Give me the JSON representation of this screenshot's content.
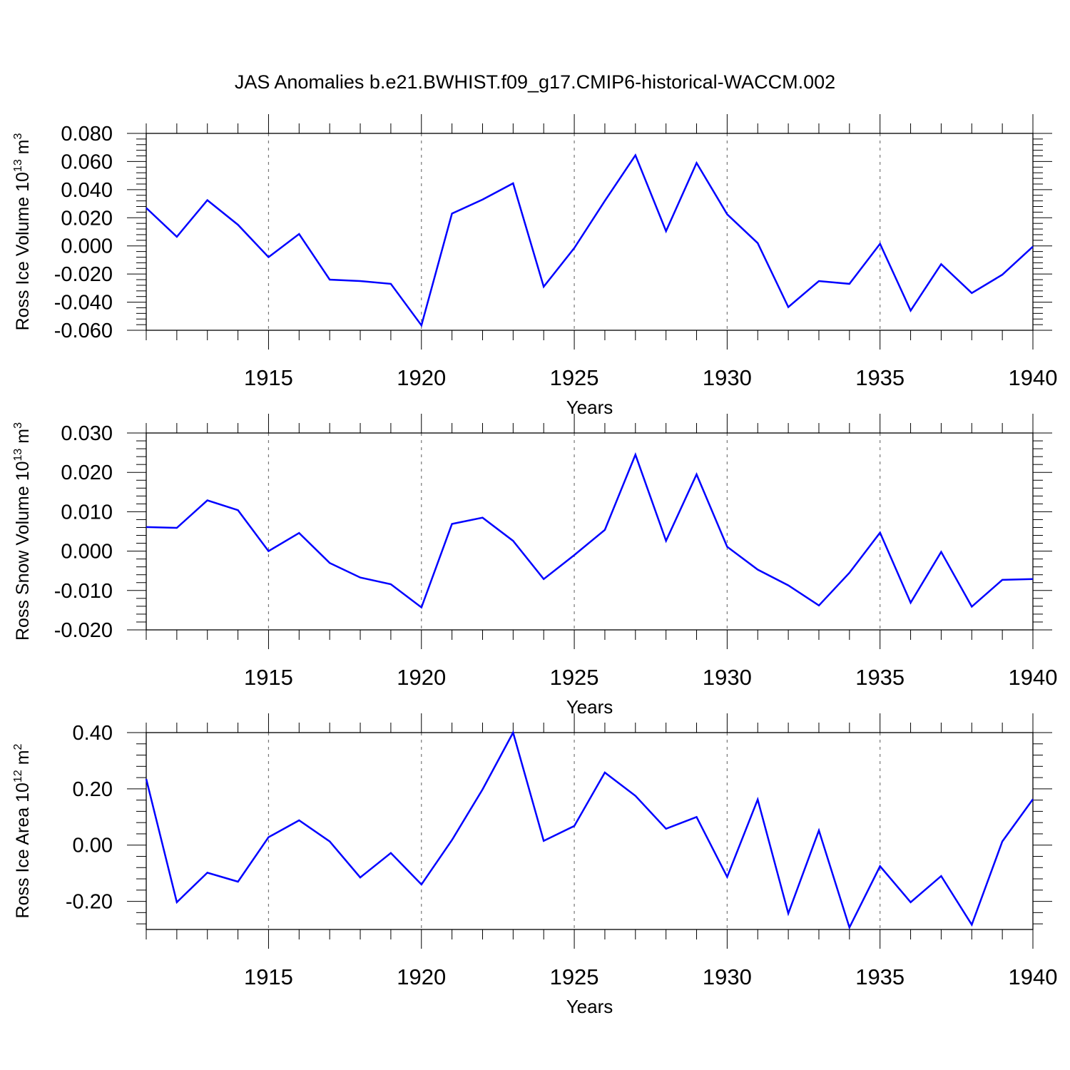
{
  "colors": {
    "line": "#0000ff",
    "axis": "#000000",
    "grid": "#777777",
    "background": "#ffffff"
  },
  "figure": {
    "title": "JAS Anomalies b.e21.BWHIST.f09_g17.CMIP6-historical-WACCM.002"
  },
  "chart_data": [
    {
      "type": "line",
      "ylabel_main": "Ross Ice Volume 10",
      "ylabel_exp": "13",
      "ylabel_unit": " m",
      "ylabel_unit_exp": "3",
      "xlabel": "Years",
      "xlim": [
        1911,
        1940
      ],
      "ylim": [
        -0.06,
        0.08
      ],
      "yticks": [
        -0.06,
        -0.04,
        -0.02,
        0.0,
        0.02,
        0.04,
        0.06,
        0.08
      ],
      "ytick_labels": [
        "-0.060",
        "-0.040",
        "-0.020",
        "0.000",
        "0.020",
        "0.040",
        "0.060",
        "0.080"
      ],
      "xticks": [
        1915,
        1920,
        1925,
        1930,
        1935,
        1940
      ],
      "xtick_labels": [
        "1915",
        "1920",
        "1925",
        "1930",
        "1935",
        "1940"
      ],
      "vertical_gridlines": [
        1915,
        1920,
        1925,
        1930,
        1935
      ],
      "x": [
        1911,
        1912,
        1913,
        1914,
        1915,
        1916,
        1917,
        1918,
        1919,
        1920,
        1921,
        1922,
        1923,
        1924,
        1925,
        1926,
        1927,
        1928,
        1929,
        1930,
        1931,
        1932,
        1933,
        1934,
        1935,
        1936,
        1937,
        1938,
        1939,
        1940
      ],
      "y": [
        0.027,
        0.0065,
        0.0325,
        0.015,
        -0.008,
        0.0085,
        -0.024,
        -0.025,
        -0.027,
        -0.0565,
        0.023,
        0.033,
        0.0445,
        -0.029,
        -0.0015,
        0.032,
        0.0645,
        0.0105,
        0.059,
        0.0225,
        0.002,
        -0.0435,
        -0.025,
        -0.027,
        0.0015,
        -0.046,
        -0.013,
        -0.0335,
        -0.0205,
        -0.0005
      ]
    },
    {
      "type": "line",
      "ylabel_main": "Ross Snow Volume 10",
      "ylabel_exp": "13",
      "ylabel_unit": " m",
      "ylabel_unit_exp": "3",
      "xlabel": "Years",
      "xlim": [
        1911,
        1940
      ],
      "ylim": [
        -0.02,
        0.03
      ],
      "yticks": [
        -0.02,
        -0.01,
        0.0,
        0.01,
        0.02,
        0.03
      ],
      "ytick_labels": [
        "-0.020",
        "-0.010",
        "0.000",
        "0.010",
        "0.020",
        "0.030"
      ],
      "xticks": [
        1915,
        1920,
        1925,
        1930,
        1935,
        1940
      ],
      "xtick_labels": [
        "1915",
        "1920",
        "1925",
        "1930",
        "1935",
        "1940"
      ],
      "vertical_gridlines": [
        1915,
        1920,
        1925,
        1930,
        1935
      ],
      "x": [
        1911,
        1912,
        1913,
        1914,
        1915,
        1916,
        1917,
        1918,
        1919,
        1920,
        1921,
        1922,
        1923,
        1924,
        1925,
        1926,
        1927,
        1928,
        1929,
        1930,
        1931,
        1932,
        1933,
        1934,
        1935,
        1936,
        1937,
        1938,
        1939,
        1940
      ],
      "y": [
        0.0061,
        0.0059,
        0.0129,
        0.0104,
        0.0,
        0.0046,
        -0.003,
        -0.0067,
        -0.0084,
        -0.0143,
        0.0069,
        0.0085,
        0.0026,
        -0.0071,
        -0.001,
        0.0054,
        0.0245,
        0.0026,
        0.0195,
        0.0011,
        -0.0047,
        -0.0087,
        -0.0138,
        -0.0055,
        0.0047,
        -0.0131,
        -0.0002,
        -0.0141,
        -0.0073,
        -0.0071
      ]
    },
    {
      "type": "line",
      "ylabel_main": "Ross Ice Area 10",
      "ylabel_exp": "12",
      "ylabel_unit": " m",
      "ylabel_unit_exp": "2",
      "xlabel": "Years",
      "xlim": [
        1911,
        1940
      ],
      "ylim": [
        -0.3,
        0.4
      ],
      "yticks": [
        -0.2,
        0.0,
        0.2,
        0.4
      ],
      "ytick_labels": [
        "-0.20",
        "0.00",
        "0.20",
        "0.40"
      ],
      "xticks": [
        1915,
        1920,
        1925,
        1930,
        1935,
        1940
      ],
      "xtick_labels": [
        "1915",
        "1920",
        "1925",
        "1930",
        "1935",
        "1940"
      ],
      "vertical_gridlines": [
        1915,
        1920,
        1925,
        1930,
        1935
      ],
      "x": [
        1911,
        1912,
        1913,
        1914,
        1915,
        1916,
        1917,
        1918,
        1919,
        1920,
        1921,
        1922,
        1923,
        1924,
        1925,
        1926,
        1927,
        1928,
        1929,
        1930,
        1931,
        1932,
        1933,
        1934,
        1935,
        1936,
        1937,
        1938,
        1939,
        1940
      ],
      "y": [
        0.235,
        -0.203,
        -0.098,
        -0.13,
        0.028,
        0.088,
        0.013,
        -0.115,
        -0.028,
        -0.14,
        0.018,
        0.198,
        0.4,
        0.015,
        0.068,
        0.258,
        0.175,
        0.058,
        0.1,
        -0.113,
        0.162,
        -0.243,
        0.052,
        -0.293,
        -0.075,
        -0.203,
        -0.11,
        -0.283,
        0.013,
        0.163
      ]
    }
  ]
}
